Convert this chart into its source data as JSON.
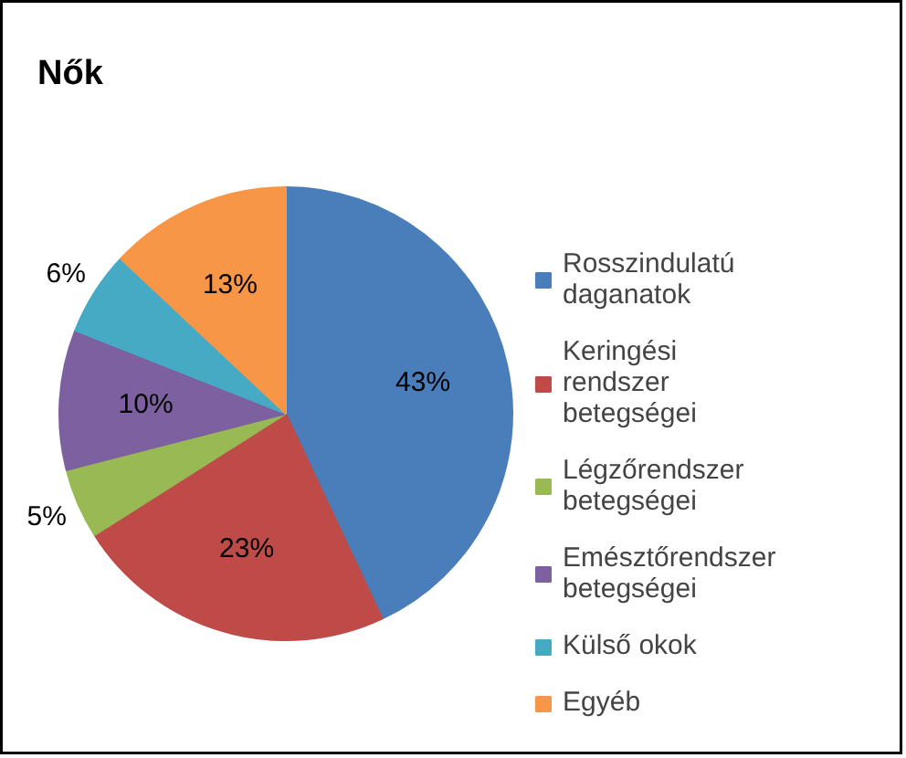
{
  "chart_data": {
    "type": "pie",
    "title": "Nők",
    "categories": [
      "Rosszindulatú daganatok",
      "Keringési rendszer betegségei",
      "Légzőrendszer betegségei",
      "Emésztőrendszer betegségei",
      "Külső okok",
      "Egyéb"
    ],
    "values": [
      43,
      23,
      5,
      10,
      6,
      13
    ],
    "value_labels": [
      "43%",
      "23%",
      "5%",
      "10%",
      "6%",
      "13%"
    ],
    "colors": [
      "#4a7ebb",
      "#be4b48",
      "#98b954",
      "#7d60a0",
      "#46aac5",
      "#f79646"
    ],
    "legend": "right"
  }
}
